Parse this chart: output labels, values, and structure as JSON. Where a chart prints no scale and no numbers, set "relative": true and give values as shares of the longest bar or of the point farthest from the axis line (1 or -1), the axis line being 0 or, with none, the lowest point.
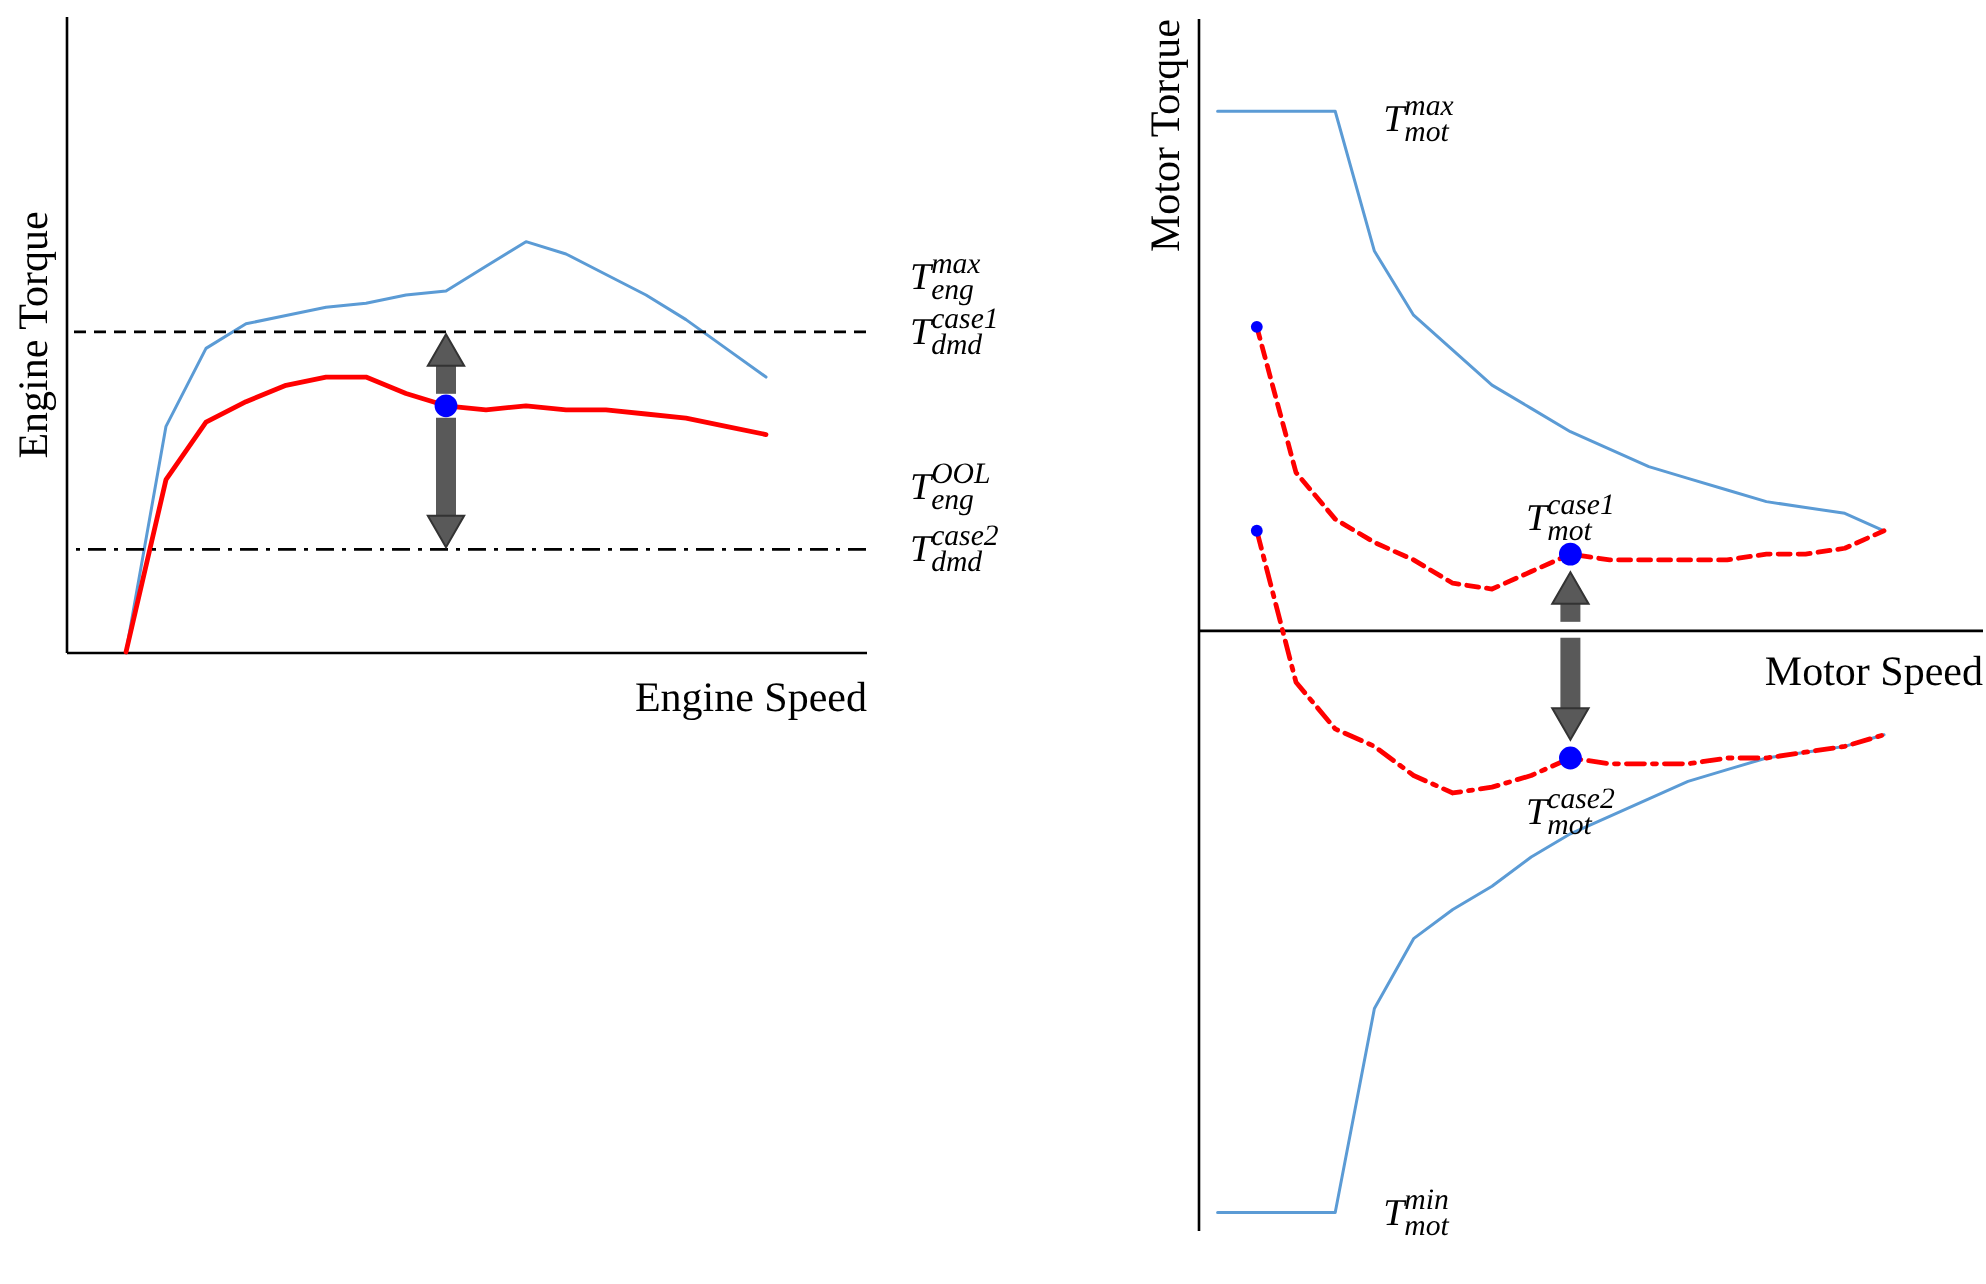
{
  "chart_data": [
    {
      "type": "line",
      "relative": true,
      "xlabel": "Engine Speed",
      "ylabel": "Engine Torque",
      "categories": [
        null,
        null,
        null,
        null,
        null,
        null,
        null,
        null,
        null,
        null,
        null,
        null,
        null,
        null,
        null,
        null,
        null,
        null,
        null,
        null
      ],
      "series": [
        {
          "name": "T$_{eng}$$^{max}$",
          "color": "#5b9bd5",
          "values": [
            null,
            0,
            0.55,
            0.74,
            0.8,
            0.82,
            0.84,
            0.85,
            0.87,
            0.88,
            0.94,
            1,
            0.97,
            0.92,
            0.87,
            0.81,
            0.74,
            0.67,
            null,
            null
          ]
        },
        {
          "name": "T$_{eng}$$^{OOL}$",
          "color": "#ff0000",
          "values": [
            null,
            0,
            0.42,
            0.56,
            0.61,
            0.65,
            0.67,
            0.67,
            0.63,
            0.6,
            0.59,
            0.6,
            0.59,
            0.59,
            0.58,
            0.57,
            0.55,
            0.53,
            null,
            null
          ]
        }
      ],
      "ref_lines": [
        {
          "axis": "y",
          "value": 0.78,
          "label": "T$_{dmd}$$^{case1}$",
          "color": "#000000",
          "line_style": "dashed"
        },
        {
          "axis": "y",
          "value": 0.25,
          "label": "T$_{dmd}$$^{case2}$",
          "color": "#000000",
          "line_style": "dashdot"
        }
      ]
    },
    {
      "type": "line",
      "relative": true,
      "xlabel": "Motor Speed",
      "ylabel": "Motor Torque",
      "categories": [
        null,
        null,
        null,
        null,
        null,
        null,
        null,
        null,
        null,
        null,
        null,
        null,
        null,
        null,
        null,
        null,
        null,
        null,
        null,
        null
      ],
      "series": [
        {
          "name": "T$_{mot}$$^{max}$",
          "color": "#5b9bd5",
          "values": [
            0.89,
            0.89,
            0.89,
            0.89,
            0.65,
            0.54,
            0.48,
            0.42,
            0.38,
            0.34,
            0.31,
            0.28,
            0.26,
            0.24,
            0.22,
            0.21,
            0.2,
            0.17,
            null,
            null
          ]
        },
        {
          "name": "T$_{mot}$$^{min}$",
          "color": "#5b9bd5",
          "values": [
            -1,
            -1,
            -1,
            -1,
            -0.65,
            -0.53,
            -0.48,
            -0.44,
            -0.39,
            -0.35,
            -0.32,
            -0.29,
            -0.26,
            -0.24,
            -0.22,
            -0.21,
            -0.2,
            -0.18,
            null,
            null
          ]
        },
        {
          "name": "T$_{mot}$$^{case1}$",
          "color": "#ff0000",
          "line_style": "dashed",
          "values": [
            null,
            0.52,
            0.27,
            0.19,
            0.15,
            0.12,
            0.08,
            0.07,
            0.1,
            0.13,
            0.12,
            0.12,
            0.12,
            0.12,
            0.13,
            0.13,
            0.14,
            0.17,
            null,
            null
          ]
        },
        {
          "name": "T$_{mot}$$^{case2}$",
          "color": "#ff0000",
          "line_style": "dashdot",
          "values": [
            null,
            0.17,
            -0.09,
            -0.17,
            -0.2,
            -0.25,
            -0.28,
            -0.27,
            -0.25,
            -0.22,
            -0.23,
            -0.23,
            -0.23,
            -0.22,
            -0.22,
            -0.21,
            -0.2,
            -0.18,
            null,
            null
          ]
        }
      ]
    }
  ]
}
